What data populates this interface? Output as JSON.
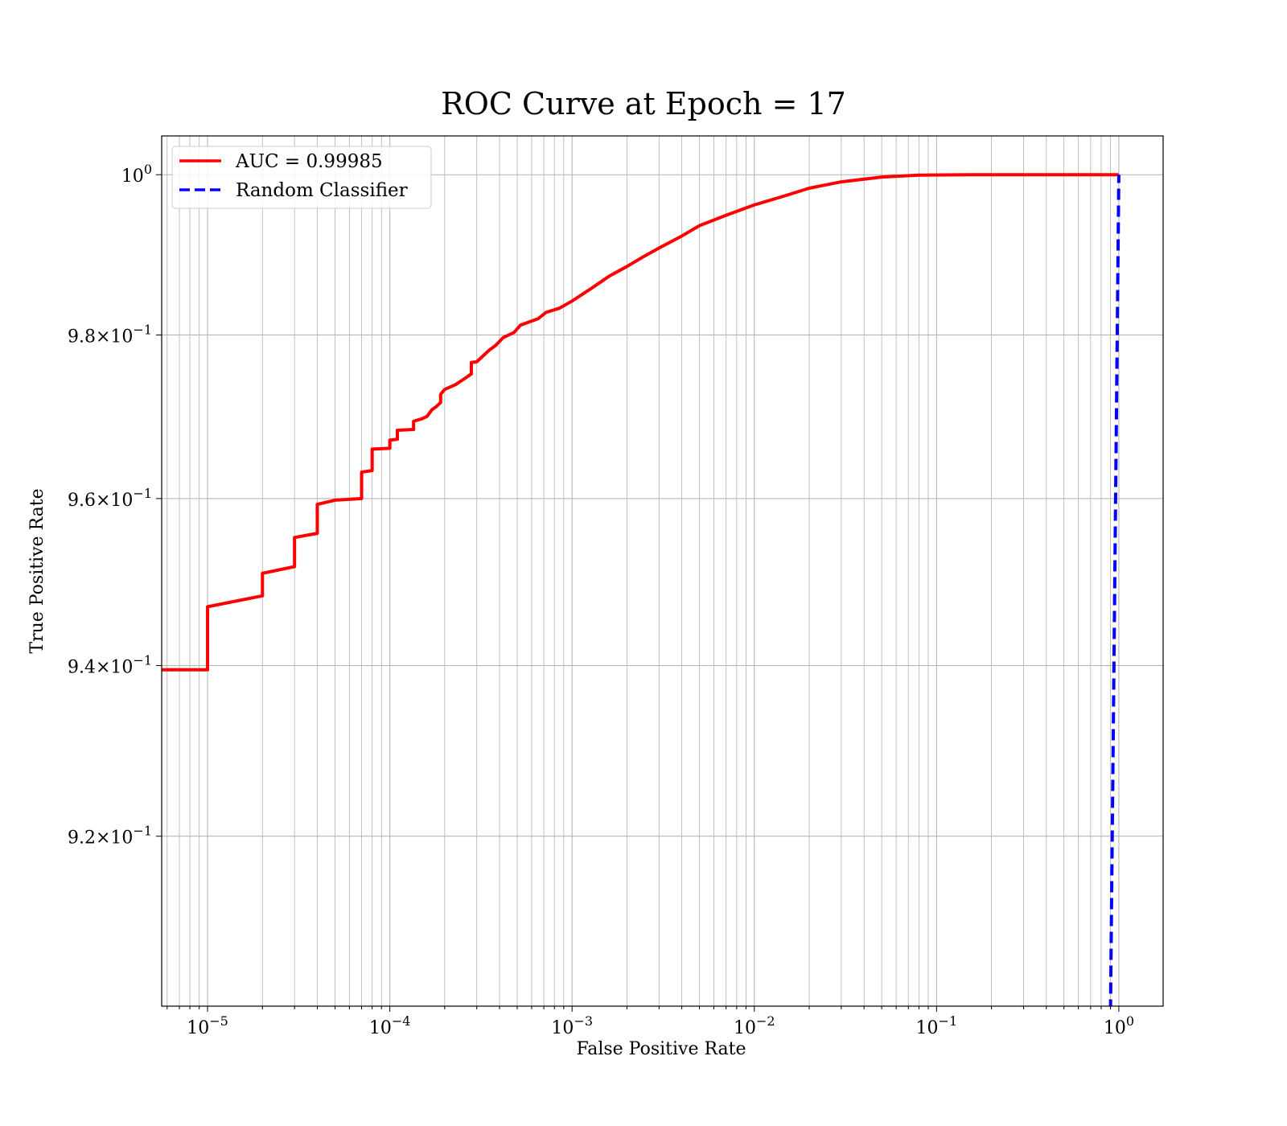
{
  "chart_data": {
    "type": "line",
    "title": "ROC Curve at Epoch = 17",
    "xlabel": "False Positive Rate",
    "ylabel": "True Positive Rate",
    "xscale": "log",
    "yscale": "log",
    "xlim": [
      5.6e-06,
      1.75
    ],
    "ylim": [
      0.9005,
      1.0049
    ],
    "grid": true,
    "grid_minor_x": true,
    "legend_placement": "top-left",
    "x_ticks": [
      {
        "value": 1e-05,
        "base": "10",
        "exp": "−5"
      },
      {
        "value": 0.0001,
        "base": "10",
        "exp": "−4"
      },
      {
        "value": 0.001,
        "base": "10",
        "exp": "−3"
      },
      {
        "value": 0.01,
        "base": "10",
        "exp": "−2"
      },
      {
        "value": 0.1,
        "base": "10",
        "exp": "−1"
      },
      {
        "value": 1,
        "base": "10",
        "exp": "0"
      }
    ],
    "y_ticks": [
      {
        "value": 0.92,
        "mant": "9.2",
        "times": "×",
        "base": "10",
        "exp": "−1"
      },
      {
        "value": 0.94,
        "mant": "9.4",
        "times": "×",
        "base": "10",
        "exp": "−1"
      },
      {
        "value": 0.96,
        "mant": "9.6",
        "times": "×",
        "base": "10",
        "exp": "−1"
      },
      {
        "value": 0.98,
        "mant": "9.8",
        "times": "×",
        "base": "10",
        "exp": "−1"
      },
      {
        "value": 1.0,
        "mant": "",
        "times": "",
        "base": "10",
        "exp": "0"
      }
    ],
    "series": [
      {
        "name": "AUC = 0.99985",
        "color": "#ff0000",
        "style": "solid",
        "points": [
          [
            5e-06,
            0.9395
          ],
          [
            1e-05,
            0.9395
          ],
          [
            1e-05,
            0.947
          ],
          [
            2e-05,
            0.9483
          ],
          [
            2e-05,
            0.951
          ],
          [
            3e-05,
            0.9518
          ],
          [
            3e-05,
            0.9553
          ],
          [
            4e-05,
            0.9558
          ],
          [
            4e-05,
            0.9593
          ],
          [
            5e-05,
            0.9598
          ],
          [
            7e-05,
            0.96
          ],
          [
            7e-05,
            0.9632
          ],
          [
            8e-05,
            0.9634
          ],
          [
            8e-05,
            0.966
          ],
          [
            0.0001,
            0.9661
          ],
          [
            0.0001,
            0.9671
          ],
          [
            0.00011,
            0.9672
          ],
          [
            0.00011,
            0.9683
          ],
          [
            0.000135,
            0.9684
          ],
          [
            0.000135,
            0.9694
          ],
          [
            0.00015,
            0.9697
          ],
          [
            0.00016,
            0.97
          ],
          [
            0.00017,
            0.9708
          ],
          [
            0.00018,
            0.9712
          ],
          [
            0.00019,
            0.9717
          ],
          [
            0.00019,
            0.9727
          ],
          [
            0.0002,
            0.9733
          ],
          [
            0.00023,
            0.9739
          ],
          [
            0.00026,
            0.9747
          ],
          [
            0.00028,
            0.9752
          ],
          [
            0.00028,
            0.9766
          ],
          [
            0.0003,
            0.9767
          ],
          [
            0.00035,
            0.9781
          ],
          [
            0.00038,
            0.9787
          ],
          [
            0.00042,
            0.9797
          ],
          [
            0.00048,
            0.9803
          ],
          [
            0.00052,
            0.9812
          ],
          [
            0.00058,
            0.9816
          ],
          [
            0.00065,
            0.982
          ],
          [
            0.00072,
            0.9828
          ],
          [
            0.00085,
            0.9833
          ],
          [
            0.001,
            0.9842
          ],
          [
            0.0013,
            0.9859
          ],
          [
            0.0016,
            0.9873
          ],
          [
            0.002,
            0.9885
          ],
          [
            0.0025,
            0.9898
          ],
          [
            0.003,
            0.9908
          ],
          [
            0.004,
            0.9923
          ],
          [
            0.005,
            0.9936
          ],
          [
            0.007,
            0.9949
          ],
          [
            0.01,
            0.9962
          ],
          [
            0.015,
            0.9974
          ],
          [
            0.02,
            0.9983
          ],
          [
            0.03,
            0.9991
          ],
          [
            0.05,
            0.9997
          ],
          [
            0.08,
            0.99995
          ],
          [
            0.15,
            1.0
          ],
          [
            1.0,
            1.0
          ]
        ]
      },
      {
        "name": "Random Classifier",
        "color": "#0000ff",
        "style": "dashed",
        "points": [
          [
            0.9,
            0.9
          ],
          [
            1.0,
            1.0
          ]
        ]
      }
    ]
  }
}
